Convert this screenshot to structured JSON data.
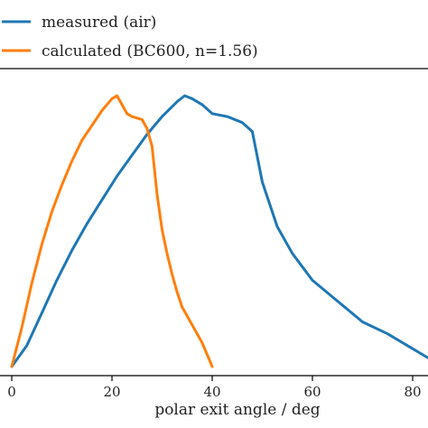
{
  "chart_data": {
    "type": "line",
    "xlabel": "polar exit angle / deg",
    "ylabel": "",
    "xlim": [
      -2,
      84
    ],
    "ylim": [
      0,
      1.0
    ],
    "xticks": [
      0,
      20,
      40,
      60,
      80
    ],
    "grid": false,
    "legend_position": "top-left",
    "series": [
      {
        "name": "measured (air)",
        "color": "#1f77b4",
        "x": [
          0,
          3,
          6,
          9,
          12,
          15,
          18,
          21,
          24,
          27,
          30,
          33,
          34.5,
          36,
          38,
          40,
          43,
          46,
          48,
          50,
          53,
          56,
          60,
          65,
          70,
          75,
          80,
          84
        ],
        "y": [
          0.0,
          0.07,
          0.18,
          0.29,
          0.39,
          0.48,
          0.56,
          0.64,
          0.71,
          0.78,
          0.84,
          0.89,
          0.91,
          0.9,
          0.88,
          0.85,
          0.84,
          0.82,
          0.79,
          0.62,
          0.47,
          0.38,
          0.29,
          0.22,
          0.15,
          0.11,
          0.06,
          0.02
        ]
      },
      {
        "name": "calculated (BC600, n=1.56)",
        "color": "#ff7f0e",
        "x": [
          0,
          2,
          4,
          6,
          8,
          10,
          12,
          14,
          16,
          18,
          20,
          21,
          22,
          23,
          24,
          26,
          27,
          28,
          29,
          30,
          31,
          32,
          33,
          34,
          35,
          36,
          38,
          40
        ],
        "y": [
          0.0,
          0.13,
          0.28,
          0.41,
          0.52,
          0.61,
          0.69,
          0.76,
          0.81,
          0.86,
          0.9,
          0.91,
          0.88,
          0.85,
          0.84,
          0.83,
          0.8,
          0.74,
          0.58,
          0.46,
          0.38,
          0.31,
          0.25,
          0.2,
          0.17,
          0.14,
          0.08,
          0.0
        ]
      }
    ]
  }
}
